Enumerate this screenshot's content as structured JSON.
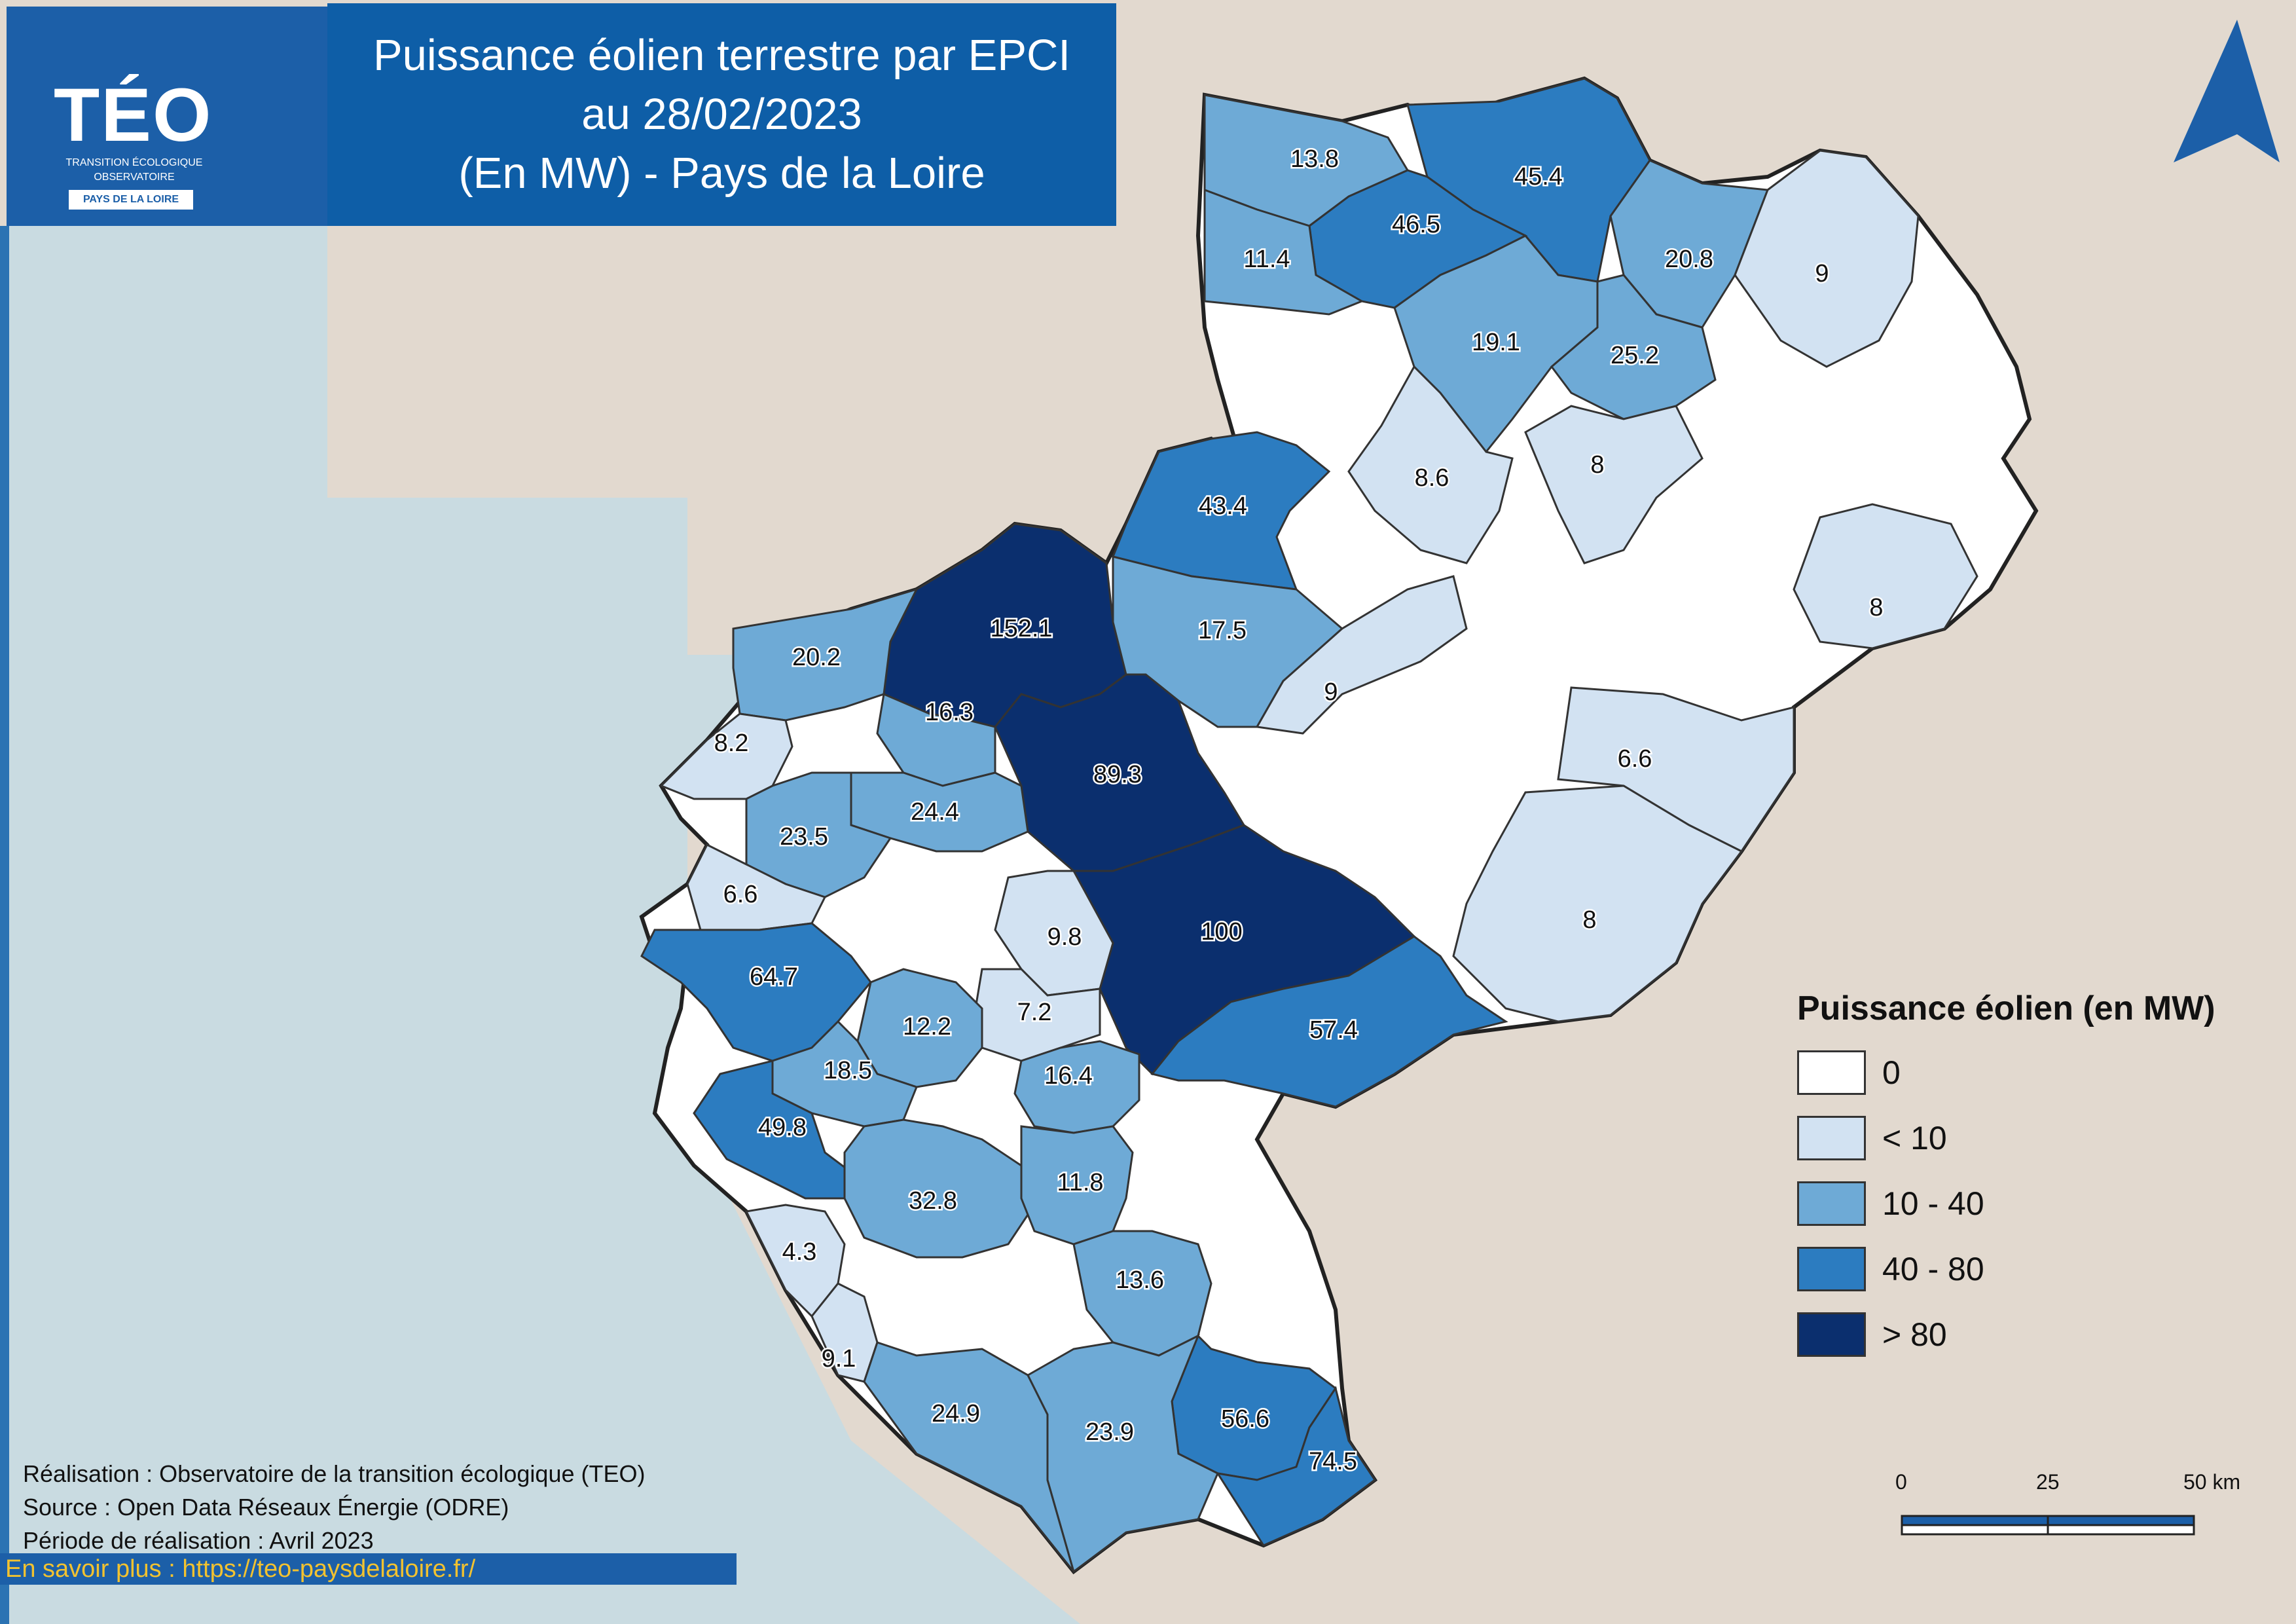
{
  "header": {
    "title_lines": [
      "Puissance éolien terrestre par EPCI",
      "au 28/02/2023",
      "(En MW) - Pays de la Loire"
    ]
  },
  "logo": {
    "name": "TÉO",
    "subtitle1": "TRANSITION ÉCOLOGIQUE",
    "subtitle2": "OBSERVATOIRE",
    "region": "PAYS DE LA LOIRE"
  },
  "north_arrow": {
    "icon": "north-arrow-icon"
  },
  "map": {
    "epci_values": [
      "13.8",
      "45.4",
      "46.5",
      "11.4",
      "20.8",
      "9",
      "19.1",
      "25.2",
      "8.6",
      "8",
      "43.4",
      "8",
      "152.1",
      "17.5",
      "20.2",
      "16.3",
      "9",
      "8.2",
      "89.3",
      "6.6",
      "24.4",
      "23.5",
      "6.6",
      "100",
      "9.8",
      "8",
      "64.7",
      "7.2",
      "12.2",
      "57.4",
      "18.5",
      "16.4",
      "49.8",
      "32.8",
      "11.8",
      "4.3",
      "13.6",
      "9.1",
      "24.9",
      "56.6",
      "23.9",
      "74.5"
    ]
  },
  "legend": {
    "title": "Puissance éolien (en MW)",
    "classes": [
      {
        "label": "0",
        "color": "#ffffff"
      },
      {
        "label": "< 10",
        "color": "#d2e2f2"
      },
      {
        "label": "10 - 40",
        "color": "#6eaad6"
      },
      {
        "label": "40 - 80",
        "color": "#2c7cc0"
      },
      {
        "label": "> 80",
        "color": "#0b2f6e"
      }
    ]
  },
  "scale_bar": {
    "labels": [
      "0",
      "25",
      "50 km"
    ]
  },
  "credits": {
    "line1": "Réalisation : Observatoire de la transition écologique (TEO)",
    "line2": "Source : Open Data Réseaux Énergie (ODRE)",
    "line3": "Période de réalisation : Avril 2023",
    "link": "En savoir plus : https://teo-paysdelaloire.fr/"
  },
  "colors": {
    "land": "#e2d9cf",
    "sea": "#c9dbe1",
    "header": "#0e5ea7"
  }
}
